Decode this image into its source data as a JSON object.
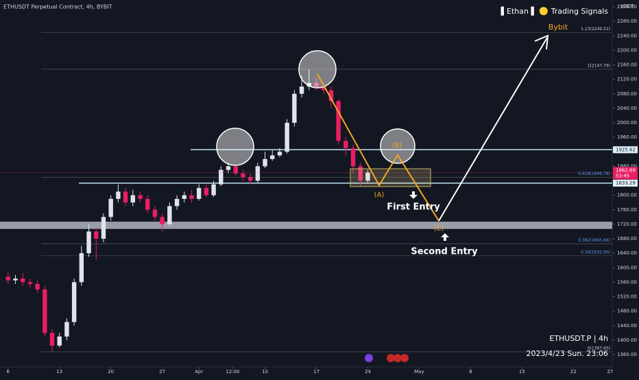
{
  "chart_data": {
    "type": "candlestick",
    "title": "ETHUSDT Perpetual Contract, 4h, BYBIT",
    "brand": "▌Ethan ▌ 🟡 Trading Signals",
    "axis_unit": "USDT",
    "exchange_note": "Bybit",
    "symbol_label": "ETHUSDT.P | 4h",
    "date_label": "2023/4/23 Sun. 23:06",
    "countdown": "53:45",
    "annotations": {
      "a": "(A)",
      "b": "(B)",
      "c": "(C)",
      "first": "First Entry",
      "second": "Second Entry"
    },
    "up_color": "#e0e3eb",
    "down_color": "#e91e63",
    "x": [
      0,
      1,
      2,
      3,
      4,
      5,
      6,
      7,
      8,
      9,
      10,
      11,
      12,
      13,
      14,
      15,
      16,
      17,
      18,
      19,
      20,
      21,
      22,
      23,
      24,
      25,
      26,
      27,
      28,
      29,
      30,
      31,
      32,
      33,
      34,
      35,
      36,
      37,
      38,
      39,
      40,
      41,
      42,
      43,
      44,
      45,
      46,
      47,
      48,
      49
    ],
    "open": [
      1575,
      1565,
      1570,
      1560,
      1555,
      1540,
      1420,
      1385,
      1410,
      1450,
      1560,
      1640,
      1700,
      1680,
      1740,
      1790,
      1810,
      1780,
      1800,
      1790,
      1760,
      1740,
      1720,
      1770,
      1790,
      1800,
      1790,
      1820,
      1800,
      1830,
      1870,
      1880,
      1860,
      1850,
      1840,
      1880,
      1900,
      1910,
      1920,
      2000,
      2080,
      2100,
      2110,
      2100,
      2090,
      2060,
      1950,
      1930,
      1880,
      1840
    ],
    "high": [
      1590,
      1580,
      1585,
      1570,
      1565,
      1550,
      1430,
      1420,
      1460,
      1570,
      1660,
      1720,
      1710,
      1750,
      1800,
      1830,
      1820,
      1815,
      1810,
      1800,
      1770,
      1750,
      1780,
      1800,
      1810,
      1815,
      1830,
      1830,
      1840,
      1880,
      1890,
      1885,
      1870,
      1860,
      1890,
      1920,
      1925,
      1930,
      2010,
      2090,
      2130,
      2147.79,
      2125,
      2110,
      2100,
      2065,
      1960,
      1940,
      1890,
      1870
    ],
    "low": [
      1555,
      1555,
      1550,
      1545,
      1530,
      1410,
      1367.65,
      1380,
      1400,
      1440,
      1550,
      1630,
      1620,
      1670,
      1730,
      1780,
      1770,
      1770,
      1780,
      1750,
      1730,
      1700,
      1715,
      1760,
      1780,
      1780,
      1785,
      1795,
      1795,
      1825,
      1860,
      1855,
      1840,
      1830,
      1835,
      1875,
      1895,
      1905,
      1915,
      1990,
      2070,
      2090,
      2090,
      2080,
      2040,
      1940,
      1910,
      1860,
      1825,
      1835
    ],
    "close": [
      1565,
      1570,
      1560,
      1555,
      1540,
      1420,
      1385,
      1410,
      1450,
      1560,
      1640,
      1700,
      1680,
      1740,
      1790,
      1810,
      1780,
      1800,
      1790,
      1760,
      1740,
      1720,
      1770,
      1790,
      1800,
      1790,
      1820,
      1800,
      1830,
      1870,
      1880,
      1860,
      1850,
      1840,
      1880,
      1900,
      1910,
      1920,
      2000,
      2080,
      2100,
      2110,
      2100,
      2090,
      2060,
      1950,
      1930,
      1880,
      1840,
      1862.69
    ],
    "last_price": {
      "value": 1862.69,
      "label": "1862.69"
    },
    "levels": [
      {
        "value": 1925.62,
        "label": "1925.62"
      },
      {
        "value": 1833.29,
        "label": "1833.29"
      }
    ],
    "zone": [
      1707,
      1727
    ],
    "fib": [
      {
        "value": 2249.21,
        "label": "1.13(2249.21)"
      },
      {
        "value": 2147.79,
        "label": "1(2147.79)"
      },
      {
        "value": 1849.78,
        "label": "0.618(1849.78)"
      },
      {
        "value": 1665.66,
        "label": "0.382(1665.66)"
      },
      {
        "value": 1632.9,
        "label": "0.34(1632.90)"
      },
      {
        "value": 1367.65,
        "label": "0(1367.65)"
      }
    ],
    "xlim": [
      -1.1,
      82.3
    ],
    "xticks": [
      {
        "value": 0,
        "label": "6"
      },
      {
        "value": 7,
        "label": "13"
      },
      {
        "value": 14,
        "label": "20"
      },
      {
        "value": 21,
        "label": "27"
      },
      {
        "value": 26,
        "label": "Apr"
      },
      {
        "value": 30.6,
        "label": "12:00"
      },
      {
        "value": 35,
        "label": "10"
      },
      {
        "value": 42,
        "label": "17"
      },
      {
        "value": 49,
        "label": "24"
      },
      {
        "value": 56,
        "label": "May"
      },
      {
        "value": 63,
        "label": "8"
      },
      {
        "value": 70,
        "label": "15"
      },
      {
        "value": 77,
        "label": "22"
      },
      {
        "value": 82,
        "label": "27"
      }
    ],
    "ylim": [
      1360,
      2320
    ],
    "yticks": [
      {
        "value": 1360,
        "label": "1360.00"
      },
      {
        "value": 1400,
        "label": "1400.00"
      },
      {
        "value": 1440,
        "label": "1440.00"
      },
      {
        "value": 1480,
        "label": "1480.00"
      },
      {
        "value": 1520,
        "label": "1520.00"
      },
      {
        "value": 1560,
        "label": "1560.00"
      },
      {
        "value": 1600,
        "label": "1600.00"
      },
      {
        "value": 1640,
        "label": "1640.00"
      },
      {
        "value": 1680,
        "label": "1680.00"
      },
      {
        "value": 1720,
        "label": "1720.00"
      },
      {
        "value": 1760,
        "label": "1760.00"
      },
      {
        "value": 1800,
        "label": "1800.00"
      },
      {
        "value": 1840,
        "label": "1840.00"
      },
      {
        "value": 1880,
        "label": "1880.00"
      },
      {
        "value": 1920,
        "label": "1920.00"
      },
      {
        "value": 1960,
        "label": "1960.00"
      },
      {
        "value": 2000,
        "label": "2000.00"
      },
      {
        "value": 2040,
        "label": "2040.00"
      },
      {
        "value": 2080,
        "label": "2080.00"
      },
      {
        "value": 2120,
        "label": "2120.00"
      },
      {
        "value": 2160,
        "label": "2160.00"
      },
      {
        "value": 2200,
        "label": "2200.00"
      },
      {
        "value": 2240,
        "label": "2240.00"
      },
      {
        "value": 2280,
        "label": "2280.00"
      },
      {
        "value": 2320,
        "label": "2320.00"
      }
    ]
  }
}
